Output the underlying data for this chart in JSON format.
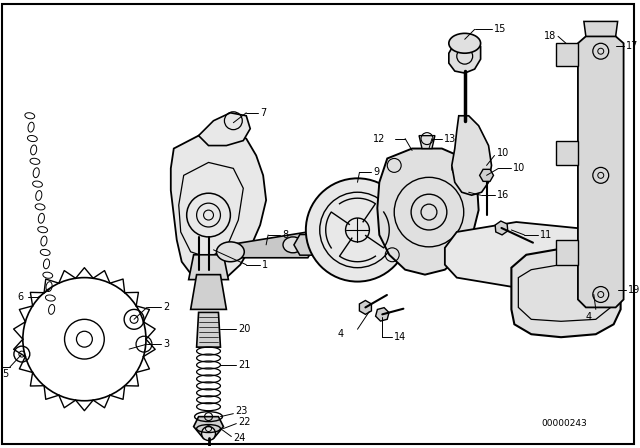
{
  "bg_color": "#ffffff",
  "diagram_color": "#000000",
  "part_number_text": "00000243",
  "fig_width": 6.4,
  "fig_height": 4.48,
  "font_size": 7.0,
  "lw": 0.9
}
